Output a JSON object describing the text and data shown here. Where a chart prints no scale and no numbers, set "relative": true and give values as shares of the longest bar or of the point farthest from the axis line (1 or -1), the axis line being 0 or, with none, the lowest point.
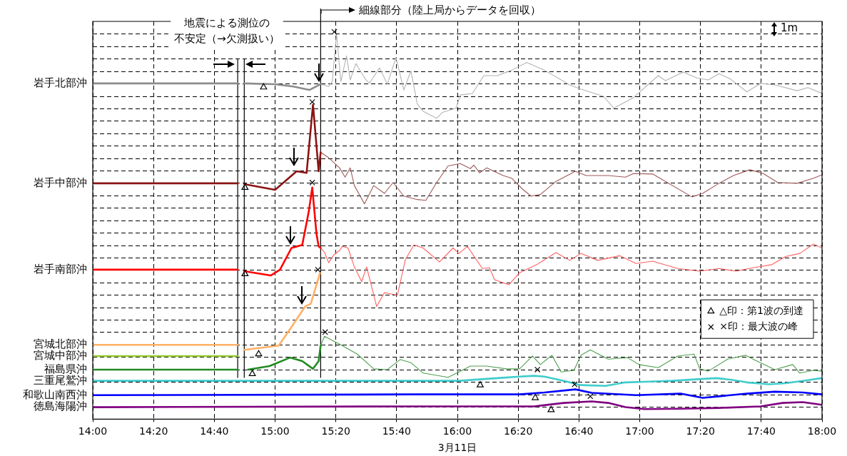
{
  "chart_data": {
    "type": "line",
    "relative": true,
    "xlabel": "3月11日",
    "xlim": [
      14,
      18
    ],
    "xticks": [
      {
        "value": 14,
        "label": "14:00"
      },
      {
        "value": 14.3333,
        "label": "14:20"
      },
      {
        "value": 14.6667,
        "label": "14:40"
      },
      {
        "value": 15,
        "label": "15:00"
      },
      {
        "value": 15.3333,
        "label": "15:20"
      },
      {
        "value": 15.6667,
        "label": "15:40"
      },
      {
        "value": 16,
        "label": "16:00"
      },
      {
        "value": 16.3333,
        "label": "16:20"
      },
      {
        "value": 16.6667,
        "label": "16:40"
      },
      {
        "value": 17,
        "label": "17:00"
      },
      {
        "value": 17.3333,
        "label": "17:20"
      },
      {
        "value": 17.6667,
        "label": "17:40"
      },
      {
        "value": 18,
        "label": "18:00"
      }
    ],
    "grid": true,
    "marker": "none",
    "line_style": "solid",
    "legend": "right",
    "ref_lines": [
      {
        "axis": "x",
        "value": 14.795
      },
      {
        "axis": "x",
        "value": 14.831
      },
      {
        "axis": "x",
        "value": 15.25,
        "label": "細線部分（陸上局からデータを回収）"
      }
    ],
    "annotations": [
      "地震による測位の不安定（→欠測扱い）",
      "1m"
    ],
    "series": [
      {
        "name": "岩手北部沖",
        "color": "#8c8c8c",
        "x": [
          14,
          14.795,
          14.81,
          14.831,
          15.0,
          15.1,
          15.188,
          15.25
        ],
        "values": [
          0.867,
          0.867,
          null,
          0.867,
          0.865,
          0.859,
          0.85,
          0.865
        ]
      },
      {
        "color": "#b4b4b4",
        "x": [
          15.25,
          15.294,
          15.314,
          15.337,
          15.361,
          15.392,
          15.412,
          15.443,
          15.498,
          15.518,
          15.573,
          15.616,
          15.663,
          15.706,
          15.745,
          15.78,
          15.812,
          15.886,
          15.918,
          15.992,
          16.016,
          16.082,
          16.145,
          16.22,
          16.298,
          16.38,
          16.478,
          16.616,
          16.678,
          16.8,
          16.859,
          16.965,
          17.102,
          17.141,
          17.239,
          17.314,
          17.376,
          17.435,
          17.498,
          17.588,
          17.663,
          17.741,
          17.863,
          17.922,
          18.0
        ],
        "values": [
          0.865,
          0.859,
          0.872,
          0.995,
          0.872,
          0.938,
          0.876,
          0.918,
          0.876,
          0.868,
          0.907,
          0.865,
          0.934,
          0.85,
          0.899,
          0.814,
          0.795,
          0.777,
          0.792,
          0.803,
          0.837,
          0.841,
          0.887,
          0.887,
          0.901,
          0.921,
          0.901,
          0.863,
          0.852,
          0.834,
          0.803,
          0.83,
          0.887,
          0.874,
          0.896,
          0.881,
          0.876,
          0.892,
          0.878,
          0.845,
          0.867,
          0.863,
          0.848,
          0.856,
          0.841
        ]
      },
      {
        "name": "岩手中部沖",
        "color": "#8b1414",
        "x": [
          14,
          14.795,
          14.81,
          14.831,
          15.0,
          15.118,
          15.173,
          15.208,
          15.239,
          15.25
        ],
        "values": [
          0.609,
          0.609,
          null,
          0.607,
          0.592,
          0.64,
          0.636,
          0.812,
          0.64,
          0.689
        ]
      },
      {
        "color": "#a05a5a",
        "x": [
          15.25,
          15.294,
          15.353,
          15.384,
          15.412,
          15.435,
          15.49,
          15.541,
          15.6,
          15.647,
          15.706,
          15.78,
          15.827,
          15.886,
          15.949,
          16.016,
          16.071,
          16.09,
          16.122,
          16.161,
          16.251,
          16.298,
          16.357,
          16.404,
          16.455,
          16.541,
          16.647,
          16.706,
          16.827,
          16.922,
          16.965,
          17.071,
          17.286,
          17.345,
          17.435,
          17.514,
          17.604,
          17.678,
          17.757,
          17.863,
          17.953,
          18.0
        ],
        "values": [
          0.689,
          0.675,
          0.649,
          0.625,
          0.649,
          0.603,
          0.556,
          0.603,
          0.583,
          0.611,
          0.576,
          0.567,
          0.565,
          0.611,
          0.654,
          0.66,
          0.647,
          0.656,
          0.636,
          0.649,
          0.629,
          0.622,
          0.594,
          0.576,
          0.58,
          0.614,
          0.64,
          0.629,
          0.629,
          0.625,
          0.634,
          0.633,
          0.574,
          0.583,
          0.609,
          0.629,
          0.644,
          0.634,
          0.611,
          0.609,
          0.622,
          0.631
        ]
      },
      {
        "name": "岩手南部沖",
        "color": "#ff0000",
        "x": [
          14,
          14.795,
          14.81,
          14.831,
          14.976,
          15.027,
          15.09,
          15.149,
          15.184,
          15.204,
          15.227,
          15.239,
          15.25
        ],
        "values": [
          0.386,
          0.386,
          null,
          0.382,
          0.371,
          0.386,
          0.442,
          0.45,
          0.534,
          0.598,
          0.479,
          0.446,
          0.442
        ]
      },
      {
        "color": "#ff6060",
        "x": [
          15.25,
          15.271,
          15.294,
          15.322,
          15.353,
          15.369,
          15.4,
          15.435,
          15.475,
          15.502,
          15.557,
          15.6,
          15.671,
          15.714,
          15.761,
          15.812,
          15.902,
          15.976,
          16.008,
          16.055,
          16.137,
          16.176,
          16.204,
          16.282,
          16.341,
          16.435,
          16.541,
          16.616,
          16.678,
          16.769,
          16.89,
          16.98,
          17.071,
          17.208,
          17.329,
          17.435,
          17.529,
          17.62,
          17.725,
          17.8,
          17.878,
          17.953,
          18.0
        ],
        "values": [
          0.442,
          0.431,
          0.404,
          0.424,
          0.435,
          0.446,
          0.442,
          0.393,
          0.355,
          0.393,
          0.291,
          0.327,
          0.32,
          0.411,
          0.45,
          0.442,
          0.406,
          0.442,
          0.428,
          0.446,
          0.389,
          0.391,
          0.36,
          0.347,
          0.378,
          0.399,
          0.43,
          0.41,
          0.428,
          0.41,
          0.422,
          0.402,
          0.408,
          0.389,
          0.382,
          0.389,
          0.382,
          0.391,
          0.399,
          0.42,
          0.428,
          0.452,
          0.442
        ]
      },
      {
        "name": "宮城北部沖",
        "color": "#ffb064",
        "x": [
          14,
          14.795,
          14.81,
          14.831,
          15.02,
          15.09,
          15.165,
          15.196,
          15.247
        ],
        "values": [
          0.192,
          0.192,
          null,
          0.179,
          0.19,
          0.238,
          0.291,
          0.298,
          0.378
        ]
      },
      {
        "name": "宮城中部沖",
        "color": "#99cc33",
        "x": [
          14,
          14.795
        ],
        "values": [
          0.163,
          0.163
        ]
      },
      {
        "name": "福島県沖",
        "color": "#228b22",
        "x": [
          14,
          14.795,
          14.81,
          14.851,
          14.969,
          15.082,
          15.149,
          15.208,
          15.239,
          15.25
        ],
        "values": [
          0.128,
          0.128,
          null,
          0.128,
          0.137,
          0.159,
          0.15,
          0.13,
          0.15,
          0.19
        ]
      },
      {
        "color": "#4f9f4f",
        "x": [
          15.25,
          15.271,
          15.361,
          15.451,
          15.541,
          15.616,
          15.686,
          15.745,
          15.812,
          15.949,
          16.008,
          16.071,
          16.161,
          16.267,
          16.341,
          16.412,
          16.455,
          16.518,
          16.569,
          16.639,
          16.678,
          16.729,
          16.827,
          16.933,
          16.996,
          17.102,
          17.208,
          17.298,
          17.329,
          17.376,
          17.482,
          17.58,
          17.635,
          17.741,
          17.839,
          17.878,
          17.953,
          18.0
        ],
        "values": [
          0.19,
          0.214,
          0.192,
          0.168,
          0.13,
          0.128,
          0.154,
          0.146,
          0.119,
          0.108,
          0.122,
          0.137,
          0.137,
          0.13,
          0.13,
          0.163,
          0.141,
          0.165,
          0.122,
          0.126,
          0.165,
          0.179,
          0.155,
          0.159,
          0.141,
          0.133,
          0.163,
          0.168,
          0.13,
          0.124,
          0.155,
          0.165,
          0.152,
          0.128,
          0.141,
          0.119,
          0.126,
          0.124
        ]
      },
      {
        "name": "三重尾鷲沖",
        "color": "#40cccc",
        "x": [
          14,
          15.0,
          15.761,
          16.008,
          16.22,
          16.341,
          16.42,
          16.478,
          16.584,
          16.678,
          16.812,
          16.922,
          17.055,
          17.176,
          17.42,
          17.498,
          17.588,
          17.71,
          17.8,
          17.894,
          18.0
        ],
        "values": [
          0.099,
          0.099,
          0.099,
          0.099,
          0.106,
          0.11,
          0.112,
          0.11,
          0.099,
          0.088,
          0.086,
          0.095,
          0.097,
          0.099,
          0.106,
          0.102,
          0.095,
          0.09,
          0.093,
          0.099,
          0.106
        ]
      },
      {
        "name": "和歌山南西沖",
        "color": "#0000ff",
        "x": [
          14,
          15.761,
          16.341,
          16.478,
          16.647,
          16.737,
          16.98,
          17.224,
          17.345,
          17.435,
          17.588,
          17.741,
          17.894,
          18.0
        ],
        "values": [
          0.062,
          0.064,
          0.064,
          0.069,
          0.077,
          0.068,
          0.062,
          0.066,
          0.055,
          0.059,
          0.066,
          0.071,
          0.069,
          0.064
        ]
      },
      {
        "name": "徳島海陽沖",
        "color": "#800080",
        "x": [
          14,
          15.761,
          16.42,
          16.584,
          16.737,
          16.827,
          16.922,
          17.027,
          17.224,
          17.435,
          17.663,
          17.784,
          17.894,
          18.0
        ],
        "values": [
          0.031,
          0.033,
          0.033,
          0.042,
          0.046,
          0.042,
          0.031,
          0.026,
          0.027,
          0.029,
          0.033,
          0.042,
          0.044,
          0.037
        ]
      },
      {
        "name": "△印：第1波の到達",
        "type": "scatter",
        "marker": "triangle",
        "color": "#000000",
        "x": [
          14.937,
          14.835,
          14.835,
          14.91,
          14.875,
          16.125,
          16.427,
          16.514
        ],
        "values": [
          0.857,
          0.598,
          0.375,
          0.168,
          0.117,
          0.088,
          0.055,
          0.024
        ]
      },
      {
        "name": "×印：最大波の峰",
        "type": "scatter",
        "marker": "cross",
        "color": "#000000",
        "x": [
          15.325,
          15.204,
          15.204,
          15.235,
          15.275,
          16.439,
          16.643,
          16.729
        ],
        "values": [
          1.0,
          0.819,
          0.611,
          0.386,
          0.225,
          0.128,
          0.09,
          0.059
        ]
      }
    ]
  }
}
